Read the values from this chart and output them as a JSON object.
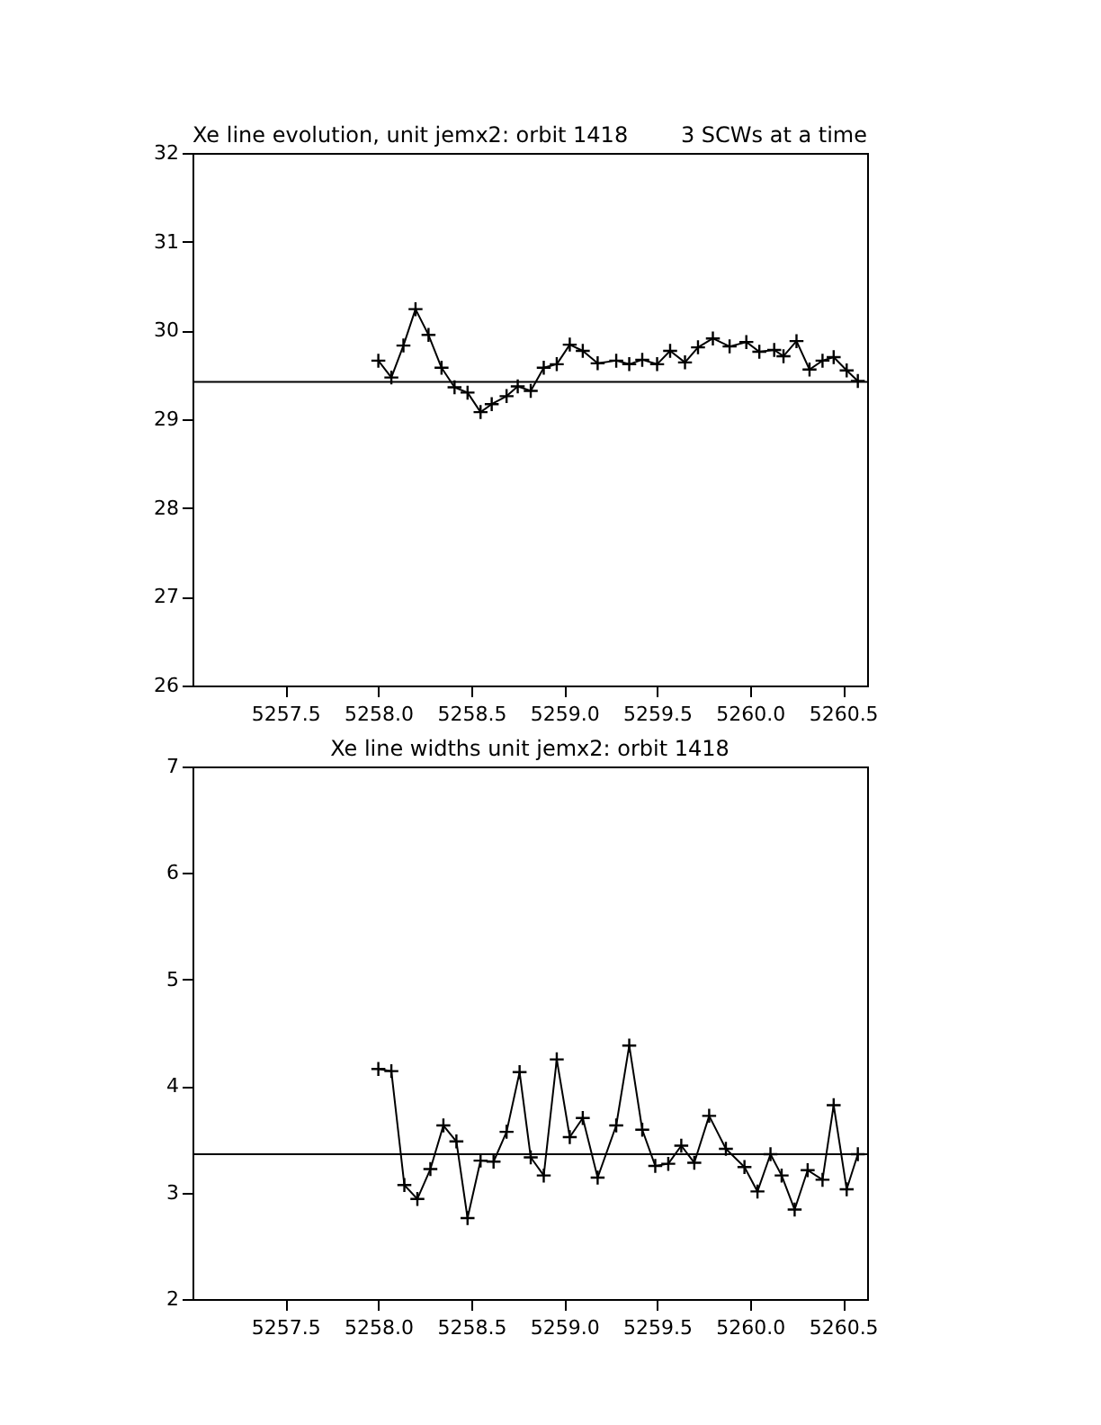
{
  "chart_data": [
    {
      "type": "line",
      "title": "Xe line evolution, unit jemx2: orbit 1418",
      "annotations": [
        "3 SCWs at a time"
      ],
      "marker": "cross",
      "line_style": "solid",
      "grid": false,
      "x": [
        5258.0,
        5258.07,
        5258.135,
        5258.2,
        5258.27,
        5258.34,
        5258.41,
        5258.48,
        5258.55,
        5258.61,
        5258.69,
        5258.75,
        5258.82,
        5258.89,
        5258.96,
        5259.03,
        5259.1,
        5259.18,
        5259.28,
        5259.35,
        5259.42,
        5259.5,
        5259.57,
        5259.65,
        5259.72,
        5259.8,
        5259.89,
        5259.98,
        5260.05,
        5260.13,
        5260.18,
        5260.25,
        5260.32,
        5260.39,
        5260.45,
        5260.52,
        5260.58
      ],
      "series": [
        {
          "color": "#000000",
          "values": [
            29.66,
            29.47,
            29.83,
            30.24,
            29.95,
            29.58,
            29.36,
            29.3,
            29.08,
            29.17,
            29.26,
            29.37,
            29.32,
            29.58,
            29.62,
            29.84,
            29.77,
            29.63,
            29.66,
            29.62,
            29.67,
            29.62,
            29.77,
            29.64,
            29.81,
            29.91,
            29.82,
            29.87,
            29.76,
            29.78,
            29.71,
            29.88,
            29.56,
            29.66,
            29.7,
            29.55,
            29.43
          ]
        }
      ],
      "ref_lines": [
        {
          "axis": "y",
          "value": 29.42,
          "color": "#000000"
        }
      ],
      "xlim": [
        5257.0,
        5260.63
      ],
      "xticks": [
        {
          "value": 5257.5,
          "label": "5257.5"
        },
        {
          "value": 5258.0,
          "label": "5258.0"
        },
        {
          "value": 5258.5,
          "label": "5258.5"
        },
        {
          "value": 5259.0,
          "label": "5259.0"
        },
        {
          "value": 5259.5,
          "label": "5259.5"
        },
        {
          "value": 5260.0,
          "label": "5260.0"
        },
        {
          "value": 5260.5,
          "label": "5260.5"
        }
      ],
      "ylim": [
        26,
        32
      ],
      "yticks": [
        26,
        27,
        28,
        29,
        30,
        31,
        32
      ]
    },
    {
      "type": "line",
      "title": "Xe line widths unit jemx2: orbit 1418",
      "marker": "cross",
      "line_style": "solid",
      "grid": false,
      "x": [
        5258.0,
        5258.07,
        5258.14,
        5258.21,
        5258.28,
        5258.35,
        5258.42,
        5258.48,
        5258.55,
        5258.62,
        5258.69,
        5258.76,
        5258.82,
        5258.89,
        5258.96,
        5259.03,
        5259.1,
        5259.18,
        5259.28,
        5259.35,
        5259.42,
        5259.49,
        5259.56,
        5259.63,
        5259.7,
        5259.78,
        5259.87,
        5259.97,
        5260.04,
        5260.11,
        5260.17,
        5260.24,
        5260.31,
        5260.39,
        5260.45,
        5260.52,
        5260.58
      ],
      "series": [
        {
          "color": "#000000",
          "values": [
            4.16,
            4.14,
            3.07,
            2.94,
            3.22,
            3.63,
            3.48,
            2.76,
            3.3,
            3.29,
            3.57,
            4.13,
            3.33,
            3.16,
            4.25,
            3.52,
            3.7,
            3.14,
            3.63,
            4.38,
            3.59,
            3.25,
            3.27,
            3.44,
            3.28,
            3.72,
            3.41,
            3.24,
            3.01,
            3.36,
            3.16,
            2.84,
            3.21,
            3.12,
            3.82,
            3.03,
            3.36
          ]
        }
      ],
      "ref_lines": [
        {
          "axis": "y",
          "value": 3.36,
          "color": "#000000"
        }
      ],
      "xlim": [
        5257.0,
        5260.63
      ],
      "xticks": [
        {
          "value": 5257.5,
          "label": "5257.5"
        },
        {
          "value": 5258.0,
          "label": "5258.0"
        },
        {
          "value": 5258.5,
          "label": "5258.5"
        },
        {
          "value": 5259.0,
          "label": "5259.0"
        },
        {
          "value": 5259.5,
          "label": "5259.5"
        },
        {
          "value": 5260.0,
          "label": "5260.0"
        },
        {
          "value": 5260.5,
          "label": "5260.5"
        }
      ],
      "ylim": [
        2,
        7
      ],
      "yticks": [
        2,
        3,
        4,
        5,
        6,
        7
      ]
    }
  ]
}
